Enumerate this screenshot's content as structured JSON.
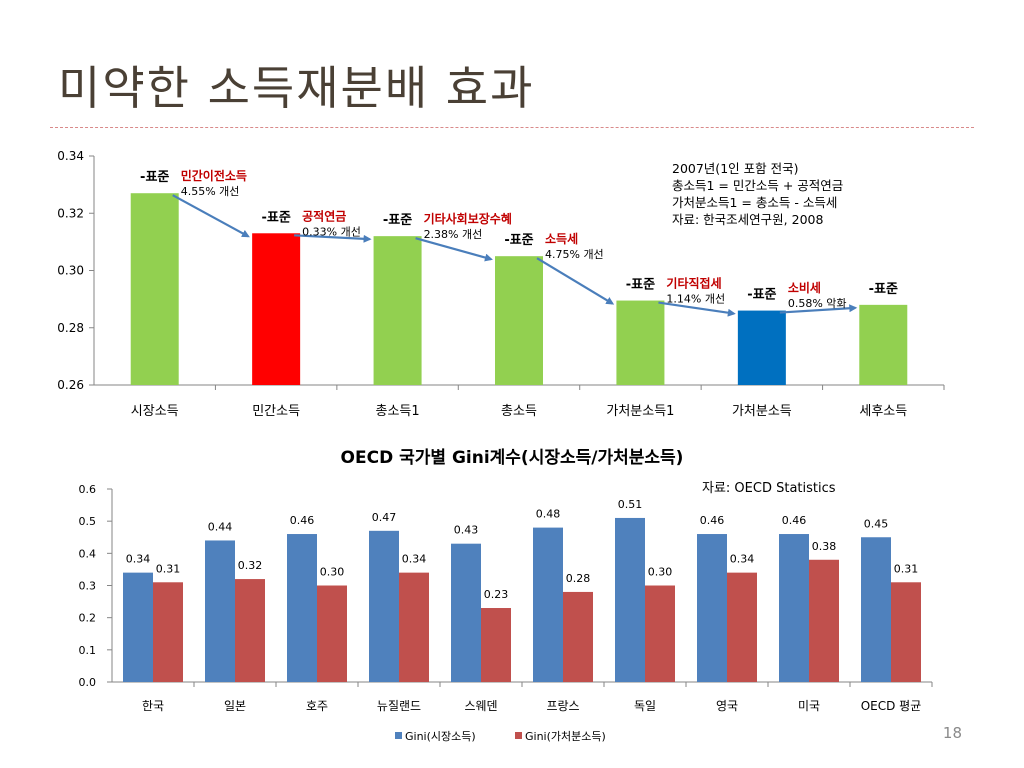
{
  "slide": {
    "title": "미약한 소득재분배 효과",
    "page_number": "18"
  },
  "note": {
    "lines": [
      "2007년(1인 포함 전국)",
      "총소득1 = 민간소득 + 공적연금",
      "가처분소득1 = 총소득 - 소득세",
      "자료: 한국조세연구원, 2008"
    ]
  },
  "chart2_source": "자료: OECD Statistics",
  "colors": {
    "green": "#92d050",
    "red": "#ff0000",
    "blue": "#0070c0",
    "arrow": "#4a7ebb",
    "series_blue": "#4f81bd",
    "series_red": "#c0504d",
    "annotation_red": "#c00000"
  },
  "chart_data": [
    {
      "type": "bar",
      "title": "",
      "categories": [
        "시장소득",
        "민간소득",
        "총소득1",
        "총소득",
        "가처분소득1",
        "가처분소득",
        "세후소득"
      ],
      "values": [
        0.327,
        0.313,
        0.312,
        0.305,
        0.2895,
        0.286,
        0.288
      ],
      "bar_colors": [
        "green",
        "red",
        "green",
        "green",
        "green",
        "blue",
        "green"
      ],
      "ylim": [
        0.26,
        0.34
      ],
      "yticks": [
        "0.26",
        "0.28",
        "0.30",
        "0.32",
        "0.34"
      ],
      "ytick_values": [
        0.26,
        0.28,
        0.3,
        0.32,
        0.34
      ],
      "bar_labels": [
        "-표준",
        "-표준",
        "-표준",
        "-표준",
        "-표준",
        "-표준",
        "-표준"
      ],
      "annotations": [
        {
          "title": "민간이전소득",
          "detail": "4.55% 개선",
          "from": 0,
          "to": 1
        },
        {
          "title": "공적연금",
          "detail": "0.33% 개선",
          "from": 1,
          "to": 2
        },
        {
          "title": "기타사회보장수혜",
          "detail": "2.38% 개선",
          "from": 2,
          "to": 3
        },
        {
          "title": "소득세",
          "detail": "4.75% 개선",
          "from": 3,
          "to": 4
        },
        {
          "title": "기타직접세",
          "detail": "1.14% 개선",
          "from": 4,
          "to": 5
        },
        {
          "title": "소비세",
          "detail": "0.58% 악화",
          "from": 5,
          "to": 6
        }
      ],
      "grid": false
    },
    {
      "type": "bar",
      "title": "OECD 국가별 Gini계수(시장소득/가처분소득)",
      "categories": [
        "한국",
        "일본",
        "호주",
        "뉴질랜드",
        "스웨덴",
        "프랑스",
        "독일",
        "영국",
        "미국",
        "OECD 평균"
      ],
      "series": [
        {
          "name": "Gini(시장소득)",
          "values": [
            0.34,
            0.44,
            0.46,
            0.47,
            0.43,
            0.48,
            0.51,
            0.46,
            0.46,
            0.45
          ],
          "labels": [
            "0.34",
            "0.44",
            "0.46",
            "0.47",
            "0.43",
            "0.48",
            "0.51",
            "0.46",
            "0.46",
            "0.45"
          ]
        },
        {
          "name": "Gini(가처분소득)",
          "values": [
            0.31,
            0.32,
            0.3,
            0.34,
            0.23,
            0.28,
            0.3,
            0.34,
            0.38,
            0.31
          ],
          "labels": [
            "0.31",
            "0.32",
            "0.30",
            "0.34",
            "0.23",
            "0.28",
            "0.30",
            "0.34",
            "0.38",
            "0.31"
          ]
        }
      ],
      "ylim": [
        0.0,
        0.6
      ],
      "yticks": [
        "0.0",
        "0.1",
        "0.2",
        "0.3",
        "0.4",
        "0.5",
        "0.6"
      ],
      "ytick_values": [
        0.0,
        0.1,
        0.2,
        0.3,
        0.4,
        0.5,
        0.6
      ],
      "legend": "bottom",
      "grid": false
    }
  ]
}
